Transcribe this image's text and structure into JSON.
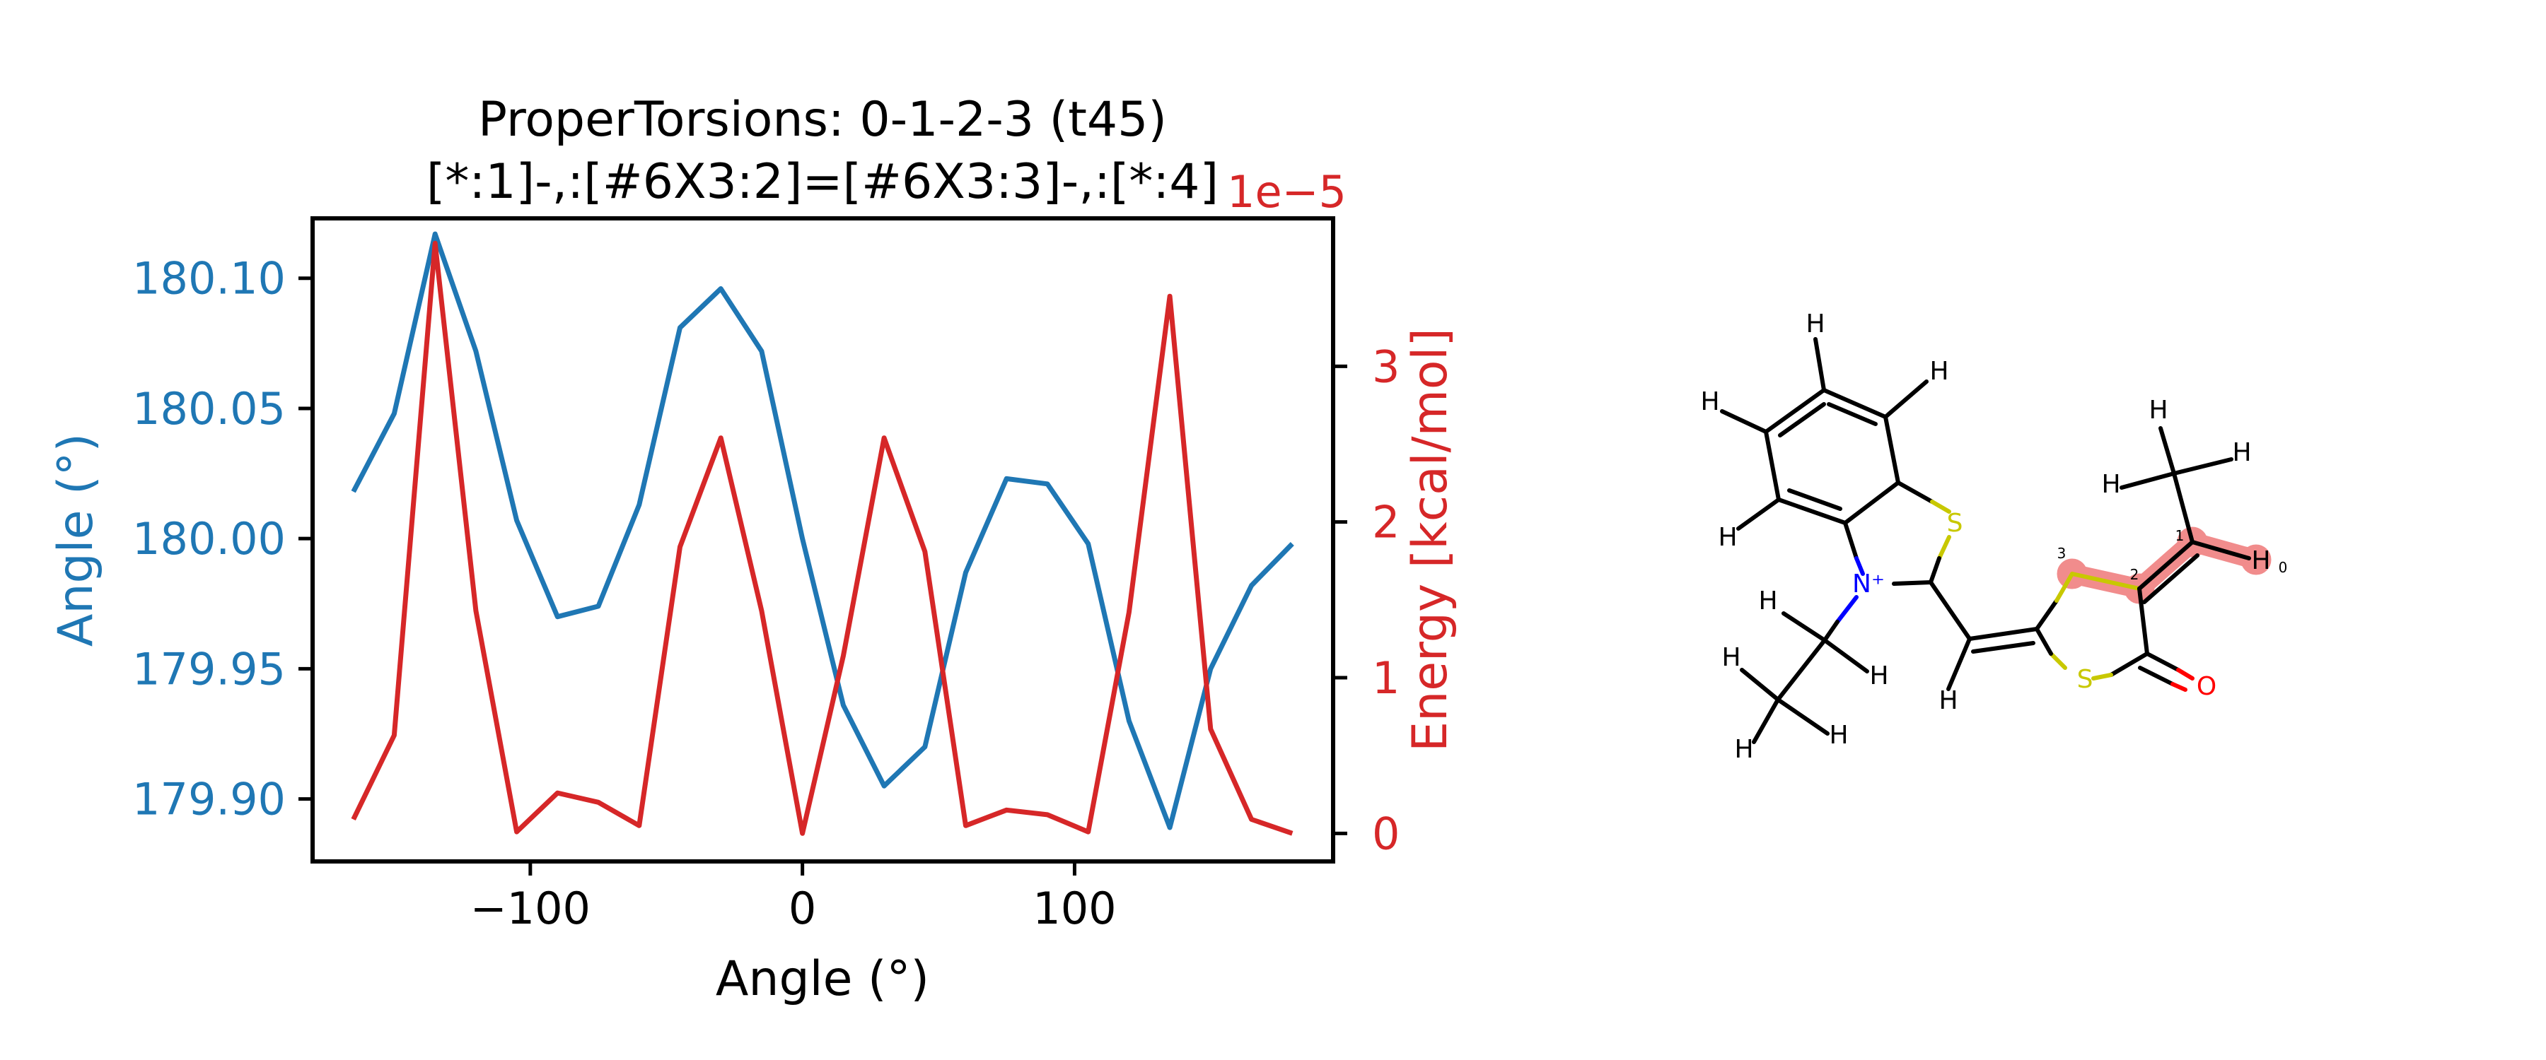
{
  "chart_data": {
    "type": "line",
    "title": "ProperTorsions: 0-1-2-3 (t45)",
    "subtitle": "[*:1]-,:[#6X3:2]=[#6X3:3]-,:[*:4]",
    "xlabel": "Angle (°)",
    "ylabel_left": "Angle (°)",
    "ylabel_right": "Energy [kcal/mol]",
    "right_axis_multiplier": "1e−5",
    "xlim": [
      -180,
      195
    ],
    "ylim_left": [
      179.876,
      180.123
    ],
    "ylim_right": [
      -0.18,
      3.95
    ],
    "x_ticks": [
      -100,
      0,
      100
    ],
    "x_tick_labels": [
      "−100",
      "0",
      "100"
    ],
    "y_left_ticks": [
      179.9,
      179.95,
      180.0,
      180.05,
      180.1
    ],
    "y_left_tick_labels": [
      "179.90",
      "179.95",
      "180.00",
      "180.05",
      "180.10"
    ],
    "y_right_ticks": [
      0,
      1,
      2,
      3
    ],
    "y_right_tick_labels": [
      "0",
      "1",
      "2",
      "3"
    ],
    "grid": false,
    "x": [
      -165,
      -150,
      -135,
      -120,
      -105,
      -90,
      -75,
      -60,
      -45,
      -30,
      -15,
      0,
      15,
      30,
      45,
      60,
      75,
      90,
      105,
      120,
      135,
      150,
      165,
      180
    ],
    "series": [
      {
        "axis": "left",
        "color": "#1f77b4",
        "values": [
          180.018,
          180.048,
          180.117,
          180.072,
          180.007,
          179.97,
          179.974,
          180.013,
          180.081,
          180.096,
          180.072,
          180.0,
          179.936,
          179.905,
          179.92,
          179.987,
          180.023,
          180.021,
          179.998,
          179.93,
          179.889,
          179.95,
          179.982,
          179.998
        ]
      },
      {
        "axis": "right",
        "color": "#d62728",
        "values": [
          0.09,
          0.63,
          3.79,
          1.43,
          0.01,
          0.26,
          0.2,
          0.05,
          1.84,
          2.54,
          1.43,
          0.0,
          1.14,
          2.54,
          1.81,
          0.05,
          0.15,
          0.12,
          0.01,
          1.42,
          3.45,
          0.67,
          0.09,
          0.0
        ]
      }
    ]
  },
  "molecule": {
    "atoms": [
      {
        "id": "Ha1",
        "label": "H",
        "color": "#000000"
      },
      {
        "id": "Ha2",
        "label": "H",
        "color": "#000000"
      },
      {
        "id": "Ha3",
        "label": "H",
        "color": "#000000"
      },
      {
        "id": "Ha4",
        "label": "H",
        "color": "#000000"
      },
      {
        "id": "S1",
        "label": "S",
        "color": "#c8c800"
      },
      {
        "id": "N1",
        "label": "N⁺",
        "color": "#0000ff"
      },
      {
        "id": "Hc1",
        "label": "H",
        "color": "#000000"
      },
      {
        "id": "Hc2",
        "label": "H",
        "color": "#000000"
      },
      {
        "id": "Hc3",
        "label": "H",
        "color": "#000000"
      },
      {
        "id": "Hc4",
        "label": "H",
        "color": "#000000"
      },
      {
        "id": "Hc5",
        "label": "H",
        "color": "#000000"
      },
      {
        "id": "Hv",
        "label": "H",
        "color": "#000000"
      },
      {
        "id": "S2",
        "label": "S",
        "color": "#c8c800"
      },
      {
        "id": "O1",
        "label": "O",
        "color": "#ff0000"
      },
      {
        "id": "Hm1",
        "label": "H",
        "color": "#000000"
      },
      {
        "id": "Hm2",
        "label": "H",
        "color": "#000000"
      },
      {
        "id": "Hm3",
        "label": "H",
        "color": "#000000"
      },
      {
        "id": "H0",
        "label": "H",
        "color": "#000000"
      }
    ],
    "highlight_color": "#f08080",
    "atom_index_labels": [
      "0",
      "1",
      "2",
      "3"
    ]
  }
}
